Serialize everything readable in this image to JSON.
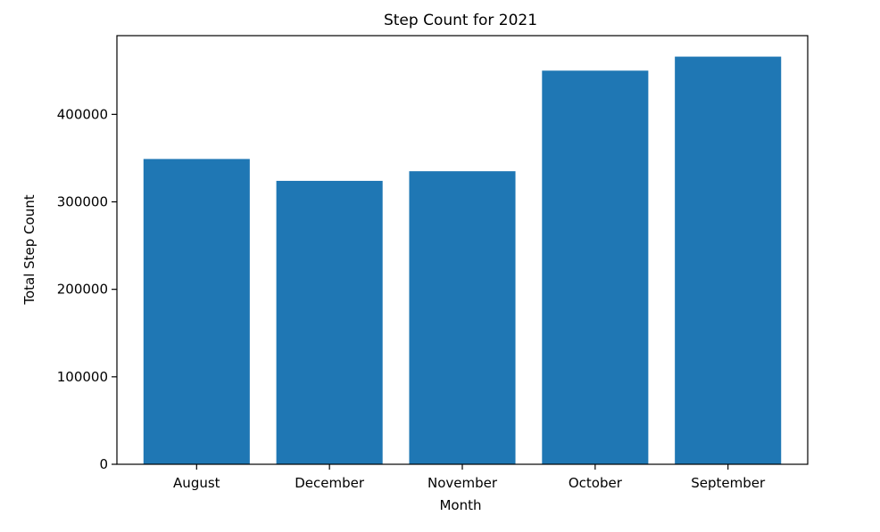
{
  "chart_data": {
    "type": "bar",
    "title": "Step Count for 2021",
    "xlabel": "Month",
    "ylabel": "Total Step Count",
    "categories": [
      "August",
      "December",
      "November",
      "October",
      "September"
    ],
    "values": [
      349000,
      324000,
      335000,
      450000,
      466000
    ],
    "ylim": [
      0,
      490000
    ],
    "yticks": [
      0,
      100000,
      200000,
      300000,
      400000
    ],
    "ytick_labels": [
      "0",
      "100000",
      "200000",
      "300000",
      "400000"
    ],
    "bar_color": "#1f77b4",
    "grid": false,
    "legend": "none"
  }
}
